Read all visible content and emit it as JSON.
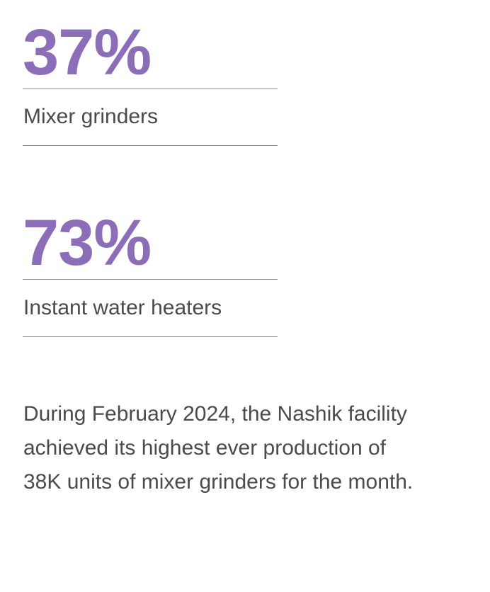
{
  "accent_color": "#8b6db8",
  "stats": [
    {
      "value": "37%",
      "label": "Mixer grinders"
    },
    {
      "value": "73%",
      "label": "Instant water heaters"
    }
  ],
  "note": "During February 2024, the Nashik facility achieved its highest ever production of 38K units of mixer grinders for the month."
}
